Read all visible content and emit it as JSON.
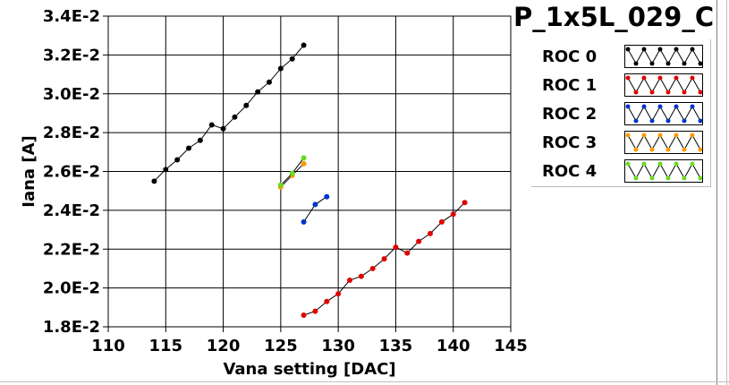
{
  "chart_data": {
    "type": "line",
    "title": "P_1x5L_029_C",
    "xlabel": "Vana setting [DAC]",
    "ylabel": "Iana [A]",
    "xlim": [
      110,
      145
    ],
    "ylim": [
      0.018,
      0.034
    ],
    "x_ticks": [
      110,
      115,
      120,
      125,
      130,
      135,
      140,
      145
    ],
    "x_tick_labels": [
      "110",
      "115",
      "120",
      "125",
      "130",
      "135",
      "140",
      "145"
    ],
    "y_ticks": [
      0.018,
      0.02,
      0.022,
      0.024,
      0.026,
      0.028,
      0.03,
      0.032,
      0.034
    ],
    "y_tick_labels": [
      "1.8E-2",
      "2.0E-2",
      "2.2E-2",
      "2.4E-2",
      "2.6E-2",
      "2.8E-2",
      "3.0E-2",
      "3.2E-2",
      "3.4E-2"
    ],
    "grid": true,
    "legend_position": "right",
    "series": [
      {
        "name": "ROC 0",
        "color": "#000000",
        "x": [
          114,
          115,
          116,
          117,
          118,
          119,
          120,
          121,
          122,
          123,
          124,
          125,
          126,
          127
        ],
        "y": [
          0.0255,
          0.0261,
          0.0266,
          0.0272,
          0.0276,
          0.0284,
          0.0282,
          0.0288,
          0.0294,
          0.0301,
          0.0306,
          0.0313,
          0.0318,
          0.0325
        ]
      },
      {
        "name": "ROC 1",
        "color": "#e00000",
        "x": [
          127,
          128,
          129,
          130,
          131,
          132,
          133,
          134,
          135,
          136,
          137,
          138,
          139,
          140,
          141
        ],
        "y": [
          0.0186,
          0.0188,
          0.0193,
          0.0197,
          0.0204,
          0.0206,
          0.021,
          0.0215,
          0.0221,
          0.0218,
          0.0224,
          0.0228,
          0.0234,
          0.0238,
          0.0244
        ]
      },
      {
        "name": "ROC 2",
        "color": "#0033cc",
        "x": [
          127,
          128,
          129
        ],
        "y": [
          0.0234,
          0.0243,
          0.0247
        ]
      },
      {
        "name": "ROC 3",
        "color": "#ff9900",
        "x": [
          125,
          126,
          127
        ],
        "y": [
          0.0252,
          0.0258,
          0.0264
        ]
      },
      {
        "name": "ROC 4",
        "color": "#66dd22",
        "x": [
          125,
          126,
          127
        ],
        "y": [
          0.0253,
          0.0259,
          0.0267
        ]
      }
    ]
  }
}
